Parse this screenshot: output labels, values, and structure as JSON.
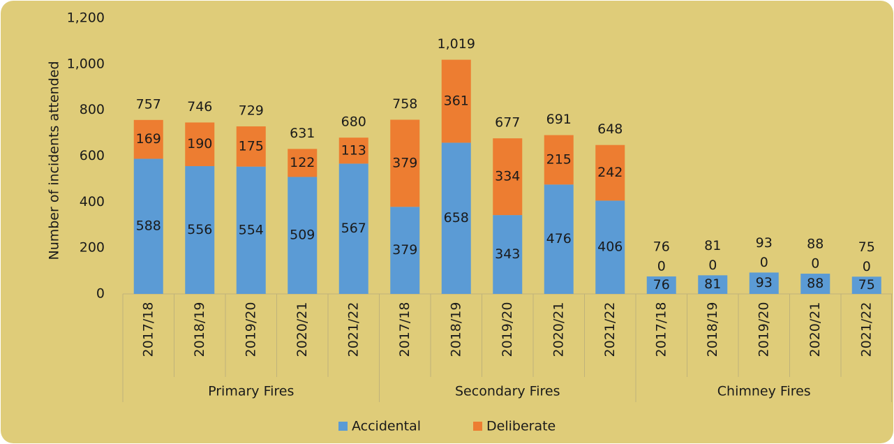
{
  "chart_data": {
    "type": "stacked_bar",
    "ylabel": "Number of incidents attended",
    "groups": [
      {
        "name": "Primary Fires",
        "categories": [
          "2017/18",
          "2018/19",
          "2019/20",
          "2020/21",
          "2021/22"
        ]
      },
      {
        "name": "Secondary Fires",
        "categories": [
          "2017/18",
          "2018/19",
          "2019/20",
          "2020/21",
          "2021/22"
        ]
      },
      {
        "name": "Chimney Fires",
        "categories": [
          "2017/18",
          "2018/19",
          "2019/20",
          "2020/21",
          "2021/22"
        ]
      }
    ],
    "series": [
      {
        "name": "Accidental",
        "color": "#5b9bd5",
        "values": [
          588,
          556,
          554,
          509,
          567,
          379,
          658,
          343,
          476,
          406,
          76,
          81,
          93,
          88,
          75
        ]
      },
      {
        "name": "Deliberate",
        "color": "#ed7d31",
        "values": [
          169,
          190,
          175,
          122,
          113,
          379,
          361,
          334,
          215,
          242,
          0,
          0,
          0,
          0,
          0
        ]
      }
    ],
    "totals": [
      757,
      746,
      729,
      631,
      680,
      758,
      {
        "value": 1019,
        "label": "1,019"
      },
      677,
      691,
      648,
      76,
      81,
      93,
      88,
      75
    ],
    "ylim": [
      0,
      1200
    ],
    "yticks": [
      0,
      200,
      400,
      600,
      800,
      {
        "value": 1000,
        "label": "1,000"
      },
      {
        "value": 1200,
        "label": "1,200"
      }
    ],
    "grid": false,
    "legend": "bottom"
  }
}
